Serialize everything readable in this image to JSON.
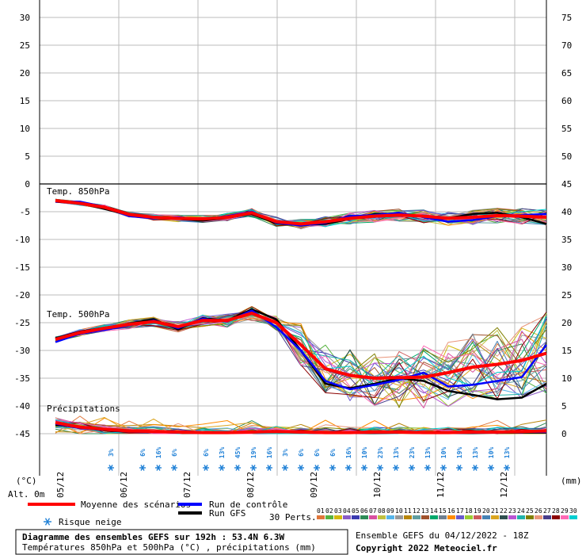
{
  "chart_data": {
    "type": "line",
    "left_axis": {
      "unit": "(°C)",
      "ticks": [
        "30",
        "25",
        "20",
        "15",
        "10",
        "5",
        "0",
        "-5",
        "-10",
        "-15",
        "-20",
        "-25",
        "-30",
        "-35",
        "-40",
        "-45"
      ]
    },
    "right_axis": {
      "unit": "(mm)",
      "ticks": [
        "75",
        "70",
        "65",
        "60",
        "55",
        "50",
        "45",
        "40",
        "35",
        "30",
        "25",
        "20",
        "15",
        "10",
        "5",
        "0"
      ]
    },
    "x_dates": [
      "05/12",
      "06/12",
      "07/12",
      "08/12",
      "09/12",
      "10/12",
      "11/12",
      "12/12"
    ],
    "panel_labels": {
      "t850": "Temp. 850hPa",
      "t500": "Temp. 500hPa",
      "precip": "Précipitations"
    },
    "t850": {
      "mean": [
        -3,
        -3.5,
        -4.2,
        -5.5,
        -6,
        -6.2,
        -6.3,
        -6,
        -5.2,
        -6.8,
        -7.2,
        -6.8,
        -6.2,
        -5.8,
        -5.6,
        -5.8,
        -6.2,
        -6,
        -5.7,
        -5.8,
        -6
      ],
      "control": [
        -3.2,
        -3.2,
        -4.1,
        -5.8,
        -6.2,
        -6,
        -6.4,
        -5.8,
        -5,
        -7,
        -7.5,
        -7,
        -5.8,
        -5.6,
        -5.2,
        -6,
        -6.8,
        -6.5,
        -5.8,
        -5.6,
        -5.4
      ],
      "gfs": [
        -3.2,
        -3.5,
        -4.5,
        -5.6,
        -6.1,
        -6.3,
        -6.6,
        -6.1,
        -5.4,
        -7.1,
        -7.4,
        -7.2,
        -6.3,
        -5.4,
        -5.4,
        -5.8,
        -6.2,
        -5.4,
        -5.2,
        -6,
        -7.2
      ]
    },
    "t500": {
      "mean": [
        -28,
        -26.8,
        -26,
        -25.3,
        -24.8,
        -25.7,
        -24.6,
        -24.6,
        -23.3,
        -25,
        -29,
        -33.3,
        -34.5,
        -35,
        -34.9,
        -34.8,
        -34,
        -33,
        -32.5,
        -31.8,
        -30.5
      ],
      "control": [
        -28.5,
        -27,
        -26.3,
        -25.5,
        -24.6,
        -26,
        -24.3,
        -24.8,
        -22.8,
        -25.8,
        -30,
        -35.5,
        -37,
        -36.2,
        -35.3,
        -34,
        -36.5,
        -36.2,
        -35.5,
        -34.8,
        -29
      ],
      "gfs": [
        -27.8,
        -26.6,
        -25.9,
        -25.2,
        -24.4,
        -26.2,
        -24.2,
        -24.6,
        -22.6,
        -24.4,
        -30,
        -36,
        -36.8,
        -36,
        -35,
        -35.5,
        -37.3,
        -38,
        -38.8,
        -38.5,
        -36
      ]
    },
    "precip_mm": {
      "mean": [
        2,
        1.2,
        0.8,
        0.5,
        0.4,
        0.3,
        0.2,
        0.2,
        0.3,
        0.4,
        0.3,
        0.2,
        0.2,
        0.3,
        0.3,
        0.2,
        0.2,
        0.3,
        0.3,
        0.4,
        0.5
      ],
      "control": [
        1.8,
        1,
        0.7,
        0.4,
        0.3,
        0.2,
        0.1,
        0.2,
        0.4,
        0.5,
        0.2,
        0.1,
        0.1,
        0.2,
        0.3,
        0.1,
        0.1,
        0.2,
        0.2,
        0.3,
        0.3
      ],
      "gfs": [
        1.6,
        1.1,
        0.6,
        0.4,
        0.3,
        0.2,
        0.2,
        0.1,
        0.3,
        0.3,
        0.2,
        0.1,
        0.1,
        0.1,
        0.2,
        0.2,
        0.1,
        0.1,
        0.2,
        0.2,
        0.2
      ]
    },
    "snow_risk": [
      {
        "x_index": 5,
        "label": "3%"
      },
      {
        "x_index": 7,
        "label": "6%"
      },
      {
        "x_index": 8,
        "label": "16%"
      },
      {
        "x_index": 9,
        "label": "6%"
      },
      {
        "x_index": 11,
        "label": "6%"
      },
      {
        "x_index": 12,
        "label": "13%"
      },
      {
        "x_index": 13,
        "label": "45%"
      },
      {
        "x_index": 14,
        "label": "19%"
      },
      {
        "x_index": 15,
        "label": "16%"
      },
      {
        "x_index": 16,
        "label": "3%"
      },
      {
        "x_index": 17,
        "label": "6%"
      },
      {
        "x_index": 18,
        "label": "6%"
      },
      {
        "x_index": 19,
        "label": "6%"
      },
      {
        "x_index": 20,
        "label": "16%"
      },
      {
        "x_index": 21,
        "label": "10%"
      },
      {
        "x_index": 22,
        "label": "23%"
      },
      {
        "x_index": 23,
        "label": "13%"
      },
      {
        "x_index": 24,
        "label": "23%"
      },
      {
        "x_index": 25,
        "label": "13%"
      },
      {
        "x_index": 26,
        "label": "10%"
      },
      {
        "x_index": 27,
        "label": "19%"
      },
      {
        "x_index": 28,
        "label": "13%"
      },
      {
        "x_index": 29,
        "label": "10%"
      },
      {
        "x_index": 30,
        "label": "13%"
      }
    ],
    "legend": {
      "mean": "Moyenne des scénarios",
      "control": "Run de contrôle",
      "gfs": "Run GFS",
      "snow": "Risque neige",
      "perts_label": "30 Perts.",
      "pert_numbers": [
        "01",
        "02",
        "03",
        "04",
        "05",
        "06",
        "07",
        "08",
        "09",
        "10",
        "11",
        "12",
        "13",
        "14",
        "15",
        "16",
        "17",
        "18",
        "19",
        "20",
        "21",
        "22",
        "23",
        "24",
        "25",
        "26",
        "27",
        "28",
        "29",
        "30"
      ],
      "pert_colors": [
        "#e0763a",
        "#58b340",
        "#d4b90e",
        "#8a5cc8",
        "#3a3ab0",
        "#2e8b57",
        "#d94fa0",
        "#c0c040",
        "#56b4e9",
        "#999999",
        "#b8860b",
        "#5f9ea0",
        "#a0522d",
        "#00a86b",
        "#708090",
        "#ff8c00",
        "#6a5acd",
        "#9acd32",
        "#cd5c5c",
        "#4682b4",
        "#daa520",
        "#2f4f4f",
        "#ba55d3",
        "#20b2aa",
        "#808000",
        "#e9967a",
        "#483d8b",
        "#8b0000",
        "#ff69b4",
        "#00ced1"
      ]
    },
    "colors": {
      "mean": "#ff0000",
      "control": "#0000ff",
      "gfs": "#000000",
      "grid": "#bbbbbb",
      "snow": "#1d7fd6"
    },
    "alt_label": "Alt. 0m"
  },
  "footer": {
    "title": "Diagramme des ensembles GEFS sur 192h : 53.4N 6.3W",
    "subtitle": "Températures 850hPa et 500hPa (°C) , précipitations (mm)",
    "run": "Ensemble GEFS du 04/12/2022 - 18Z",
    "copyright": "Copyright 2022 Meteociel.fr"
  }
}
